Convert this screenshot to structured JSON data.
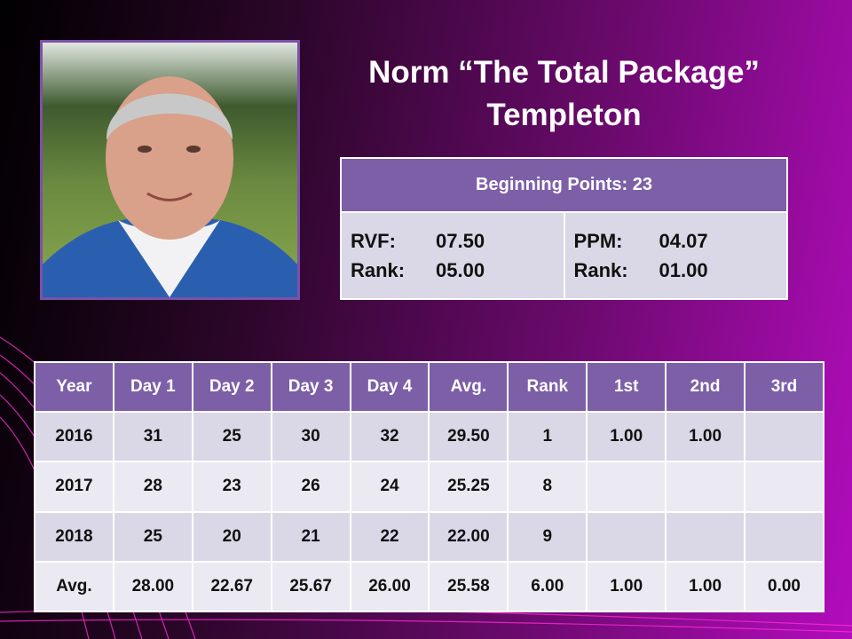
{
  "title": [
    "Norm “The Total Package”",
    "Templeton"
  ],
  "info": {
    "header": "Beginning Points: 23",
    "left": [
      [
        "RVF:",
        "07.50"
      ],
      [
        "Rank:",
        "05.00"
      ]
    ],
    "right": [
      [
        "PPM:",
        "04.07"
      ],
      [
        "Rank:",
        "01.00"
      ]
    ]
  },
  "table": {
    "header": [
      "Year",
      "Day 1",
      "Day 2",
      "Day 3",
      "Day 4",
      "Avg.",
      "Rank",
      "1st",
      "2nd",
      "3rd"
    ],
    "rows": [
      [
        "2016",
        "31",
        "25",
        "30",
        "32",
        "29.50",
        "1",
        "1.00",
        "1.00",
        null
      ],
      [
        "2017",
        "28",
        "23",
        "26",
        "24",
        "25.25",
        "8",
        null,
        null,
        null
      ],
      [
        "2018",
        "25",
        "20",
        "21",
        "22",
        "22.00",
        "9",
        null,
        null,
        null
      ],
      [
        "Avg.",
        "28.00",
        "22.67",
        "25.67",
        "26.00",
        "25.58",
        "6.00",
        "1.00",
        "1.00",
        "0.00"
      ]
    ]
  }
}
